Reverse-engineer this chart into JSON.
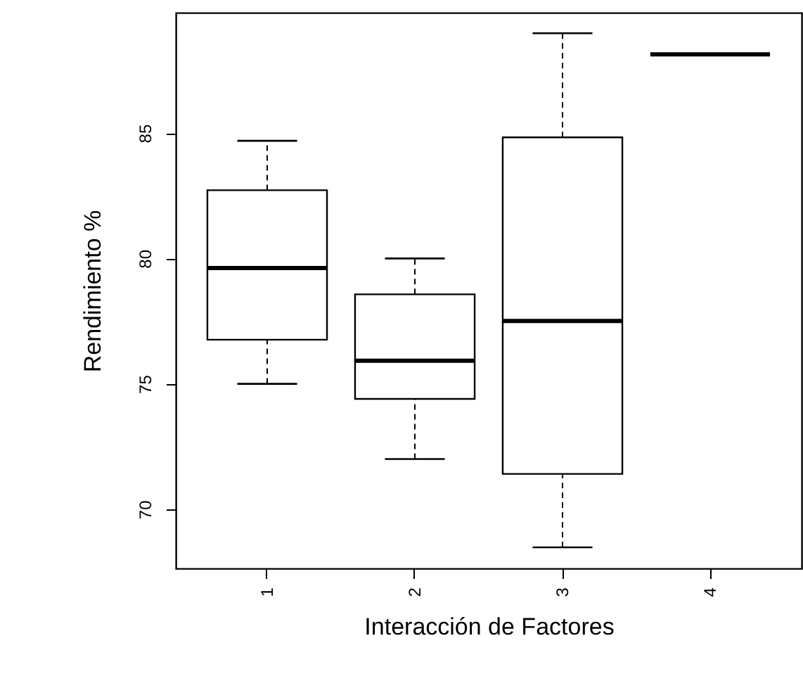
{
  "chart_data": {
    "type": "box",
    "xlabel": "Interacción de Factores",
    "ylabel": "Rendimiento %",
    "categories": [
      "1",
      "2",
      "3",
      "4"
    ],
    "boxes": [
      {
        "low": 75,
        "q1": 76.76,
        "median": 79.62,
        "q3": 82.72,
        "high": 84.69
      },
      {
        "low": 72,
        "q1": 74.4,
        "median": 75.92,
        "q3": 78.57,
        "high": 80
      },
      {
        "low": 68.48,
        "q1": 71.41,
        "median": 77.51,
        "q3": 84.83,
        "high": 88.98
      },
      {
        "low": 88.14,
        "q1": 88.14,
        "median": 88.14,
        "q3": 88.14,
        "high": 88.14
      }
    ],
    "ylim": [
      67.64,
      89.8
    ],
    "yticks": [
      70,
      75,
      80,
      85
    ],
    "grid": false
  }
}
